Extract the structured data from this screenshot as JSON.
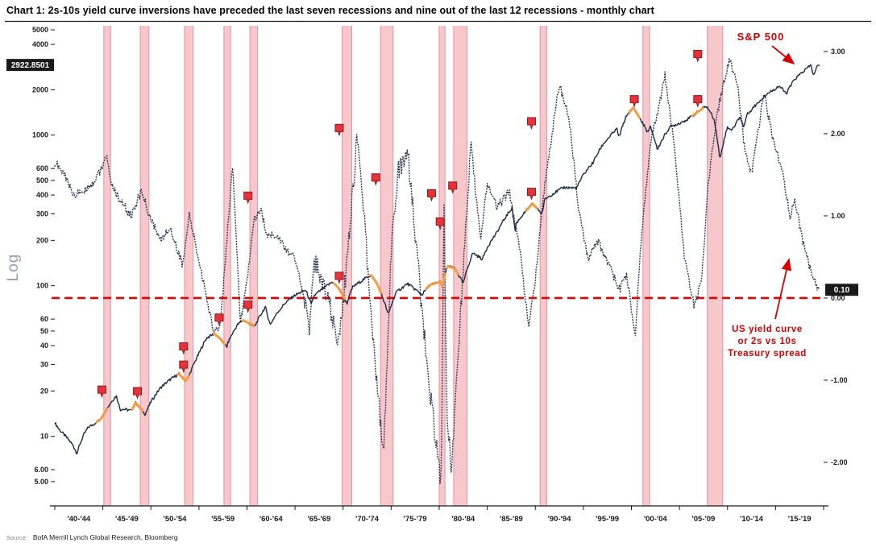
{
  "title": "Chart 1: 2s-10s yield curve inversions have preceded the last seven recessions and nine out of the last 12 recessions - monthly chart",
  "source_prefix": "Source:",
  "source_text": "BofA Merrill Lynch Global Research, Bloomberg",
  "colors": {
    "sp_line": "#1c2a45",
    "spread_line": "#2a3550",
    "recession_fill": "#f6c7cb",
    "recession_edge": "#e республ",
    "zero_line": "#e10600",
    "marker_fill": "#e6333a",
    "marker_stroke": "#8c1a1f",
    "annotation": "#d40000",
    "label_box_bg": "#1a1a1a",
    "label_box_text": "#ffffff",
    "orange_highlight": "#f59b42",
    "axis_text": "#1a1a1a",
    "log_label": "#9aa0a6"
  },
  "annotations": {
    "sp_label": "S&P 500",
    "yc_label_lines": [
      "US yield curve",
      "or 2s vs 10s",
      "Treasury spread"
    ]
  },
  "chart_data": {
    "type": "line",
    "title": "2s-10s yield curve inversions vs S&P 500, monthly, 1940-2019",
    "x_axis": {
      "min": 1940,
      "max": 2020,
      "labels": [
        "'40-'44",
        "'45-'49",
        "'50-'54",
        "'55-'59",
        "'60-'64",
        "'65-'69",
        "'70-'74",
        "'75-'79",
        "'80-'84",
        "'85-'89",
        "'90-'94",
        "'95-'99",
        "'00-'04",
        "'05-'09",
        "'10-'14",
        "'15-'19"
      ]
    },
    "left_axis": {
      "label": "Log",
      "scale": "log",
      "min": 3.45,
      "max": 5320,
      "ticks": [
        {
          "v": 5000,
          "label": "5000"
        },
        {
          "v": 4000,
          "label": "4000"
        },
        {
          "v": 2000,
          "label": "2000"
        },
        {
          "v": 1000,
          "label": "1000"
        },
        {
          "v": 600,
          "label": "600"
        },
        {
          "v": 500,
          "label": "500"
        },
        {
          "v": 400,
          "label": "400"
        },
        {
          "v": 300,
          "label": "300"
        },
        {
          "v": 200,
          "label": "200"
        },
        {
          "v": 100,
          "label": "100"
        },
        {
          "v": 60,
          "label": "60"
        },
        {
          "v": 50,
          "label": "50"
        },
        {
          "v": 40,
          "label": "40"
        },
        {
          "v": 30,
          "label": "30"
        },
        {
          "v": 20,
          "label": "20"
        },
        {
          "v": 10,
          "label": "10"
        },
        {
          "v": 6,
          "label": "6.00"
        },
        {
          "v": 5,
          "label": "5.00"
        }
      ],
      "price_label": "2922.8501",
      "price_value": 2922.85
    },
    "right_axis": {
      "scale": "linear",
      "min": -2.53,
      "max": 3.313,
      "ticks": [
        {
          "v": 3,
          "label": "3.00"
        },
        {
          "v": 2,
          "label": "2.00"
        },
        {
          "v": 1,
          "label": "1.00"
        },
        {
          "v": 0,
          "label": "0.00"
        },
        {
          "v": -1,
          "label": "-1.00"
        },
        {
          "v": -2,
          "label": "-2.00"
        }
      ],
      "value_label": "0.10",
      "value": 0.1
    },
    "zero_line": {
      "axis": "right",
      "value": 0
    },
    "recessions": [
      [
        1945.1,
        1945.8
      ],
      [
        1948.9,
        1949.8
      ],
      [
        1953.5,
        1954.4
      ],
      [
        1957.6,
        1958.3
      ],
      [
        1960.3,
        1961.1
      ],
      [
        1969.9,
        1970.9
      ],
      [
        1973.9,
        1975.2
      ],
      [
        1980.0,
        1980.6
      ],
      [
        1981.5,
        1982.9
      ],
      [
        1990.5,
        1991.2
      ],
      [
        2001.2,
        2001.9
      ],
      [
        2007.9,
        2009.5
      ]
    ],
    "series": [
      {
        "name": "S&P 500",
        "axis": "left",
        "style": "solid",
        "points": [
          [
            1940,
            12.3
          ],
          [
            1940.5,
            11.0
          ],
          [
            1941,
            10.2
          ],
          [
            1941.9,
            8.7
          ],
          [
            1942.3,
            7.7
          ],
          [
            1943,
            10.2
          ],
          [
            1943.5,
            11.5
          ],
          [
            1944,
            12.0
          ],
          [
            1944.8,
            13.0
          ],
          [
            1945,
            13.7
          ],
          [
            1945.9,
            17.0
          ],
          [
            1946.4,
            18.6
          ],
          [
            1946.8,
            15.0
          ],
          [
            1947,
            15.2
          ],
          [
            1948,
            14.8
          ],
          [
            1948.4,
            16.7
          ],
          [
            1949.4,
            14.0
          ],
          [
            1950,
            16.9
          ],
          [
            1951,
            21.0
          ],
          [
            1952,
            23.8
          ],
          [
            1952.9,
            26.0
          ],
          [
            1953.6,
            23.3
          ],
          [
            1954,
            25.5
          ],
          [
            1955,
            35.5
          ],
          [
            1955.8,
            45.0
          ],
          [
            1956.6,
            48.0
          ],
          [
            1957.2,
            44.5
          ],
          [
            1957.9,
            39.0
          ],
          [
            1958,
            41.5
          ],
          [
            1959,
            55.0
          ],
          [
            1959.6,
            59.0
          ],
          [
            1960.8,
            53.5
          ],
          [
            1961.9,
            72.0
          ],
          [
            1962.4,
            55.0
          ],
          [
            1963,
            64.0
          ],
          [
            1964,
            77.0
          ],
          [
            1965,
            86.5
          ],
          [
            1966.1,
            93.5
          ],
          [
            1966.7,
            74.5
          ],
          [
            1967,
            86.0
          ],
          [
            1968.9,
            106.0
          ],
          [
            1969.5,
            97.0
          ],
          [
            1970.4,
            76.0
          ],
          [
            1971,
            98.0
          ],
          [
            1972.9,
            118.0
          ],
          [
            1973.5,
            104.0
          ],
          [
            1974.7,
            64.0
          ],
          [
            1975.5,
            90.0
          ],
          [
            1976.7,
            103.0
          ],
          [
            1978.2,
            87.0
          ],
          [
            1979,
            101.0
          ],
          [
            1980.1,
            106.0
          ],
          [
            1980.3,
            100.0
          ],
          [
            1980.9,
            135.0
          ],
          [
            1981.6,
            130.0
          ],
          [
            1982.5,
            103.0
          ],
          [
            1983.5,
            165.0
          ],
          [
            1984.5,
            150.0
          ],
          [
            1985,
            180.0
          ],
          [
            1986,
            225.0
          ],
          [
            1987.6,
            330.0
          ],
          [
            1987.9,
            225.0
          ],
          [
            1988,
            258.0
          ],
          [
            1989.7,
            350.0
          ],
          [
            1990.7,
            300.0
          ],
          [
            1991,
            375.0
          ],
          [
            1992,
            415.0
          ],
          [
            1993,
            450.0
          ],
          [
            1994.3,
            445.0
          ],
          [
            1995,
            545.0
          ],
          [
            1996,
            655.0
          ],
          [
            1997,
            860.0
          ],
          [
            1998.5,
            1100.0
          ],
          [
            1998.7,
            960.0
          ],
          [
            1999.5,
            1350.0
          ],
          [
            2000.2,
            1520.0
          ],
          [
            2001,
            1250.0
          ],
          [
            2001.7,
            1040.0
          ],
          [
            2002,
            1130.0
          ],
          [
            2002.7,
            800.0
          ],
          [
            2003,
            880.0
          ],
          [
            2004,
            1130.0
          ],
          [
            2005,
            1200.0
          ],
          [
            2006,
            1290.0
          ],
          [
            2007.8,
            1560.0
          ],
          [
            2008.6,
            1280.0
          ],
          [
            2009.2,
            683.0
          ],
          [
            2010,
            1130.0
          ],
          [
            2010.5,
            1080.0
          ],
          [
            2011.3,
            1330.0
          ],
          [
            2011.7,
            1120.0
          ],
          [
            2012,
            1360.0
          ],
          [
            2013,
            1600.0
          ],
          [
            2014,
            1850.0
          ],
          [
            2015.4,
            2120.0
          ],
          [
            2016.1,
            1880.0
          ],
          [
            2017,
            2350.0
          ],
          [
            2018.7,
            2920.0
          ],
          [
            2018.95,
            2450.0
          ],
          [
            2019.3,
            2850.0
          ],
          [
            2019.6,
            2922.85
          ]
        ]
      },
      {
        "name": "US yield curve 2s vs 10s Treasury spread",
        "axis": "right",
        "style": "dotted",
        "points": [
          [
            1940,
            1.65
          ],
          [
            1941,
            1.5
          ],
          [
            1942,
            1.25
          ],
          [
            1943,
            1.3
          ],
          [
            1944,
            1.4
          ],
          [
            1945.4,
            1.7
          ],
          [
            1946,
            1.35
          ],
          [
            1947,
            1.15
          ],
          [
            1948,
            1.0
          ],
          [
            1949,
            1.3
          ],
          [
            1950,
            0.95
          ],
          [
            1951,
            0.7
          ],
          [
            1952,
            0.85
          ],
          [
            1953.3,
            0.4
          ],
          [
            1954,
            1.0
          ],
          [
            1955,
            0.45
          ],
          [
            1956.5,
            -0.4
          ],
          [
            1957.2,
            -0.35
          ],
          [
            1957.9,
            0.7
          ],
          [
            1958.5,
            1.6
          ],
          [
            1959.3,
            -0.3
          ],
          [
            1960,
            0.2
          ],
          [
            1960.7,
            0.95
          ],
          [
            1961.5,
            1.05
          ],
          [
            1962,
            0.8
          ],
          [
            1963,
            0.75
          ],
          [
            1964,
            0.6
          ],
          [
            1965,
            0.5
          ],
          [
            1966.5,
            -0.35
          ],
          [
            1967,
            0.45
          ],
          [
            1968,
            0.15
          ],
          [
            1969.5,
            -0.55
          ],
          [
            1970.3,
            0.3
          ],
          [
            1971.5,
            2.0
          ],
          [
            1972,
            1.25
          ],
          [
            1973.4,
            -0.9
          ],
          [
            1974.2,
            -1.9
          ],
          [
            1975,
            0.6
          ],
          [
            1975.8,
            1.6
          ],
          [
            1976.8,
            1.7
          ],
          [
            1978,
            0.1
          ],
          [
            1979,
            -1.1
          ],
          [
            1979.9,
            -2.0
          ],
          [
            1980.2,
            -2.2
          ],
          [
            1980.5,
            1.1
          ],
          [
            1980.8,
            -1.4
          ],
          [
            1981.3,
            -2.1
          ],
          [
            1982,
            -0.6
          ],
          [
            1982.8,
            0.9
          ],
          [
            1983.3,
            1.9
          ],
          [
            1984.3,
            0.7
          ],
          [
            1985,
            1.4
          ],
          [
            1986,
            1.1
          ],
          [
            1987.3,
            1.3
          ],
          [
            1988.5,
            0.5
          ],
          [
            1989.3,
            -0.35
          ],
          [
            1990,
            0.2
          ],
          [
            1991,
            1.4
          ],
          [
            1992.5,
            2.6
          ],
          [
            1993.5,
            2.2
          ],
          [
            1994.5,
            1.1
          ],
          [
            1995.5,
            0.45
          ],
          [
            1996.5,
            0.7
          ],
          [
            1997.5,
            0.45
          ],
          [
            1998.8,
            0.1
          ],
          [
            1999.5,
            0.3
          ],
          [
            2000.4,
            -0.5
          ],
          [
            2001,
            0.7
          ],
          [
            2002,
            1.9
          ],
          [
            2003.5,
            2.7
          ],
          [
            2004.5,
            1.8
          ],
          [
            2005.5,
            0.5
          ],
          [
            2006.5,
            -0.1
          ],
          [
            2007.3,
            0.2
          ],
          [
            2008,
            1.4
          ],
          [
            2009,
            2.3
          ],
          [
            2010.2,
            2.9
          ],
          [
            2011,
            2.6
          ],
          [
            2011.8,
            1.8
          ],
          [
            2012.5,
            1.5
          ],
          [
            2013.8,
            2.5
          ],
          [
            2014.8,
            1.9
          ],
          [
            2015.8,
            1.5
          ],
          [
            2016.5,
            1.0
          ],
          [
            2017,
            1.2
          ],
          [
            2017.8,
            0.7
          ],
          [
            2018.5,
            0.4
          ],
          [
            2019.1,
            0.2
          ],
          [
            2019.6,
            0.1
          ]
        ]
      }
    ],
    "markers": [
      {
        "year": 1944.9,
        "frac": 0.762
      },
      {
        "year": 1948.6,
        "frac": 0.765
      },
      {
        "year": 1953.4,
        "frac": 0.672
      },
      {
        "year": 1953.4,
        "frac": 0.71
      },
      {
        "year": 1957.1,
        "frac": 0.612
      },
      {
        "year": 1960.1,
        "frac": 0.358
      },
      {
        "year": 1960.1,
        "frac": 0.585
      },
      {
        "year": 1969.6,
        "frac": 0.217
      },
      {
        "year": 1969.6,
        "frac": 0.525
      },
      {
        "year": 1973.4,
        "frac": 0.32
      },
      {
        "year": 1979.2,
        "frac": 0.353
      },
      {
        "year": 1980.1,
        "frac": 0.412
      },
      {
        "year": 1981.4,
        "frac": 0.337
      },
      {
        "year": 1989.6,
        "frac": 0.203
      },
      {
        "year": 1989.6,
        "frac": 0.35
      },
      {
        "year": 2000.3,
        "frac": 0.157
      },
      {
        "year": 2006.9,
        "frac": 0.063
      },
      {
        "year": 2006.9,
        "frac": 0.157
      }
    ]
  }
}
